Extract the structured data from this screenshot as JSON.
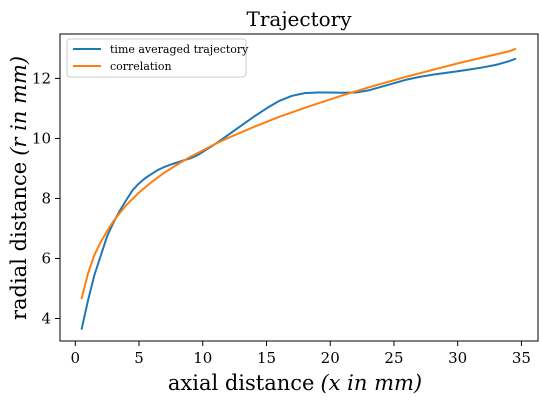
{
  "chart_data": {
    "type": "line",
    "title": "Trajectory",
    "xlabel": "axial distance",
    "xlabel_math": "(x in mm)",
    "ylabel": "radial distance",
    "ylabel_math": "(r in mm)",
    "xlim": [
      -1.2,
      36.3
    ],
    "ylim": [
      3.25,
      13.48
    ],
    "xticks": [
      0,
      5,
      10,
      15,
      20,
      25,
      30,
      35
    ],
    "yticks": [
      4,
      6,
      8,
      10,
      12
    ],
    "grid": false,
    "legend_position": "top-left",
    "series": [
      {
        "name": "time averaged trajectory",
        "color": "#1f77b4",
        "x": [
          0.5,
          1.0,
          1.5,
          2.0,
          2.5,
          3.0,
          3.5,
          4.0,
          4.5,
          5.0,
          5.5,
          6.0,
          6.5,
          7.0,
          7.5,
          8.0,
          8.5,
          9.0,
          9.5,
          10.0,
          11.0,
          12.0,
          13.0,
          14.0,
          15.0,
          16.0,
          17.0,
          18.0,
          19.0,
          20.0,
          21.0,
          22.0,
          23.0,
          24.0,
          25.0,
          26.0,
          27.0,
          28.0,
          29.0,
          30.0,
          31.0,
          32.0,
          33.0,
          34.0,
          34.5
        ],
        "y": [
          3.66,
          4.6,
          5.45,
          6.1,
          6.75,
          7.2,
          7.6,
          7.95,
          8.28,
          8.5,
          8.68,
          8.82,
          8.95,
          9.05,
          9.13,
          9.2,
          9.27,
          9.33,
          9.42,
          9.55,
          9.82,
          10.12,
          10.42,
          10.72,
          11.0,
          11.25,
          11.42,
          11.51,
          11.53,
          11.53,
          11.52,
          11.53,
          11.6,
          11.72,
          11.84,
          11.96,
          12.05,
          12.12,
          12.18,
          12.24,
          12.3,
          12.37,
          12.45,
          12.57,
          12.65
        ]
      },
      {
        "name": "correlation",
        "color": "#ff7f0e",
        "x": [
          0.5,
          1.0,
          1.5,
          2.0,
          2.5,
          3.0,
          3.5,
          4.0,
          5.0,
          6.0,
          7.0,
          8.0,
          9.0,
          10.0,
          11.0,
          12.0,
          13.0,
          14.0,
          15.0,
          16.0,
          17.0,
          18.0,
          19.0,
          20.0,
          21.0,
          22.0,
          23.0,
          24.0,
          25.0,
          26.0,
          27.0,
          28.0,
          29.0,
          30.0,
          31.0,
          32.0,
          33.0,
          34.0,
          34.5
        ],
        "y": [
          4.68,
          5.5,
          6.12,
          6.55,
          6.92,
          7.25,
          7.52,
          7.78,
          8.2,
          8.55,
          8.86,
          9.13,
          9.38,
          9.6,
          9.82,
          10.02,
          10.2,
          10.38,
          10.55,
          10.72,
          10.87,
          11.02,
          11.16,
          11.3,
          11.44,
          11.57,
          11.7,
          11.82,
          11.94,
          12.06,
          12.17,
          12.28,
          12.39,
          12.5,
          12.6,
          12.7,
          12.8,
          12.9,
          12.98
        ]
      }
    ]
  }
}
